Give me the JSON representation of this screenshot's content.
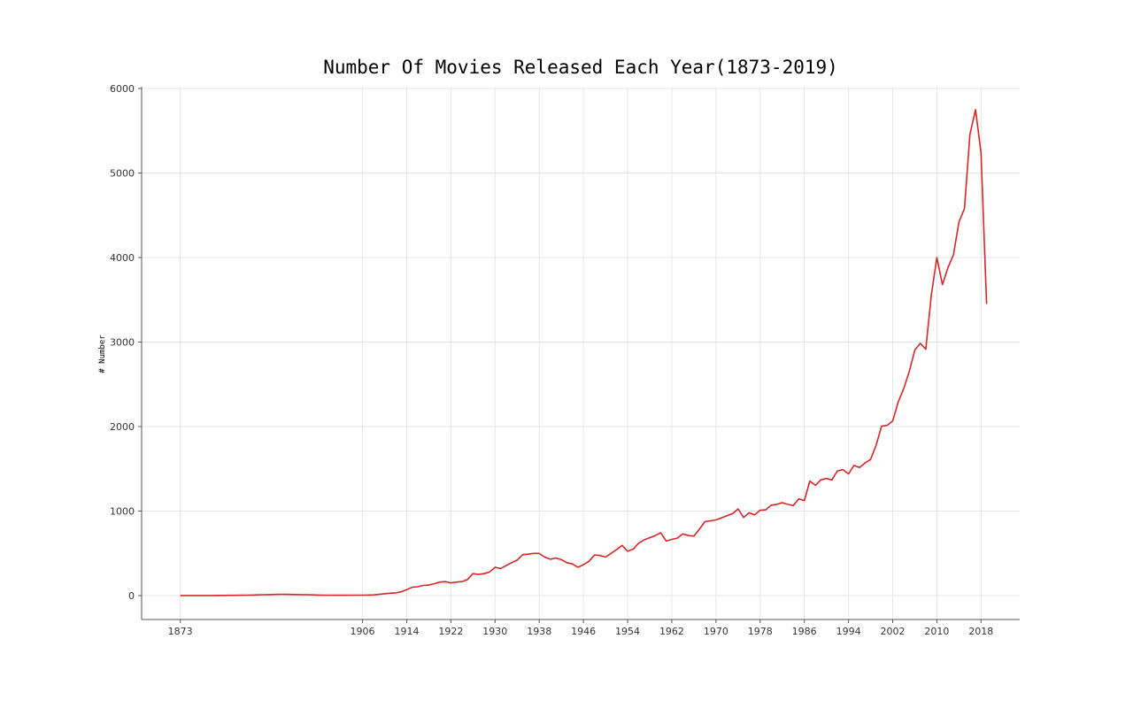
{
  "chart_data": {
    "type": "line",
    "title": "Number Of Movies Released Each Year(1873-2019)",
    "xlabel": "",
    "ylabel": "# Number",
    "xlim": [
      1866,
      2025
    ],
    "ylim": [
      -280,
      6000
    ],
    "x_ticks": [
      1873,
      1906,
      1914,
      1922,
      1930,
      1938,
      1946,
      1954,
      1962,
      1970,
      1978,
      1986,
      1994,
      2002,
      2010,
      2018
    ],
    "y_ticks": [
      0,
      1000,
      2000,
      3000,
      4000,
      5000,
      6000
    ],
    "grid": true,
    "line_color": "#d62728",
    "series": [
      {
        "x": [
          1873,
          1874,
          1875,
          1876,
          1877,
          1878,
          1879,
          1880,
          1881,
          1882,
          1883,
          1884,
          1885,
          1886,
          1887,
          1888,
          1889,
          1890,
          1891,
          1892,
          1893,
          1894,
          1895,
          1896,
          1897,
          1898,
          1899,
          1900,
          1901,
          1902,
          1903,
          1904,
          1905,
          1906,
          1907,
          1908,
          1909,
          1910,
          1911,
          1912,
          1913,
          1914,
          1915,
          1916,
          1917,
          1918,
          1919,
          1920,
          1921,
          1922,
          1923,
          1924,
          1925,
          1926,
          1927,
          1928,
          1929,
          1930,
          1931,
          1932,
          1933,
          1934,
          1935,
          1936,
          1937,
          1938,
          1939,
          1940,
          1941,
          1942,
          1943,
          1944,
          1945,
          1946,
          1947,
          1948,
          1949,
          1950,
          1951,
          1952,
          1953,
          1954,
          1955,
          1956,
          1957,
          1958,
          1959,
          1960,
          1961,
          1962,
          1963,
          1964,
          1965,
          1966,
          1967,
          1968,
          1969,
          1970,
          1971,
          1972,
          1973,
          1974,
          1975,
          1976,
          1977,
          1978,
          1979,
          1980,
          1981,
          1982,
          1983,
          1984,
          1985,
          1986,
          1987,
          1988,
          1989,
          1990,
          1991,
          1992,
          1993,
          1994,
          1995,
          1996,
          1997,
          1998,
          1999,
          2000,
          2001,
          2002,
          2003,
          2004,
          2005,
          2006,
          2007,
          2008,
          2009,
          2010,
          2011,
          2012,
          2013,
          2014,
          2015,
          2016,
          2017,
          2018,
          2019
        ],
        "values": [
          1,
          1,
          1,
          1,
          1,
          1,
          1,
          2,
          2,
          3,
          3,
          4,
          5,
          6,
          8,
          10,
          12,
          14,
          15,
          15,
          14,
          13,
          12,
          10,
          8,
          6,
          5,
          4,
          4,
          4,
          4,
          5,
          5,
          5,
          6,
          8,
          15,
          22,
          28,
          32,
          45,
          70,
          100,
          105,
          120,
          125,
          140,
          160,
          165,
          150,
          160,
          165,
          190,
          260,
          250,
          260,
          280,
          335,
          320,
          355,
          390,
          420,
          485,
          490,
          500,
          500,
          455,
          430,
          445,
          425,
          390,
          375,
          335,
          365,
          405,
          480,
          475,
          455,
          500,
          545,
          595,
          525,
          550,
          620,
          660,
          685,
          710,
          745,
          645,
          665,
          680,
          730,
          710,
          705,
          785,
          875,
          885,
          895,
          920,
          945,
          970,
          1025,
          925,
          980,
          955,
          1010,
          1015,
          1070,
          1080,
          1100,
          1080,
          1065,
          1145,
          1125,
          1355,
          1305,
          1370,
          1385,
          1370,
          1475,
          1490,
          1440,
          1540,
          1515,
          1570,
          1610,
          1780,
          2005,
          2015,
          2065,
          2290,
          2450,
          2650,
          2905,
          2985,
          2915,
          3560,
          4000,
          3680,
          3880,
          4030,
          4420,
          4580,
          5460,
          5750,
          5240,
          3450
        ]
      }
    ]
  }
}
